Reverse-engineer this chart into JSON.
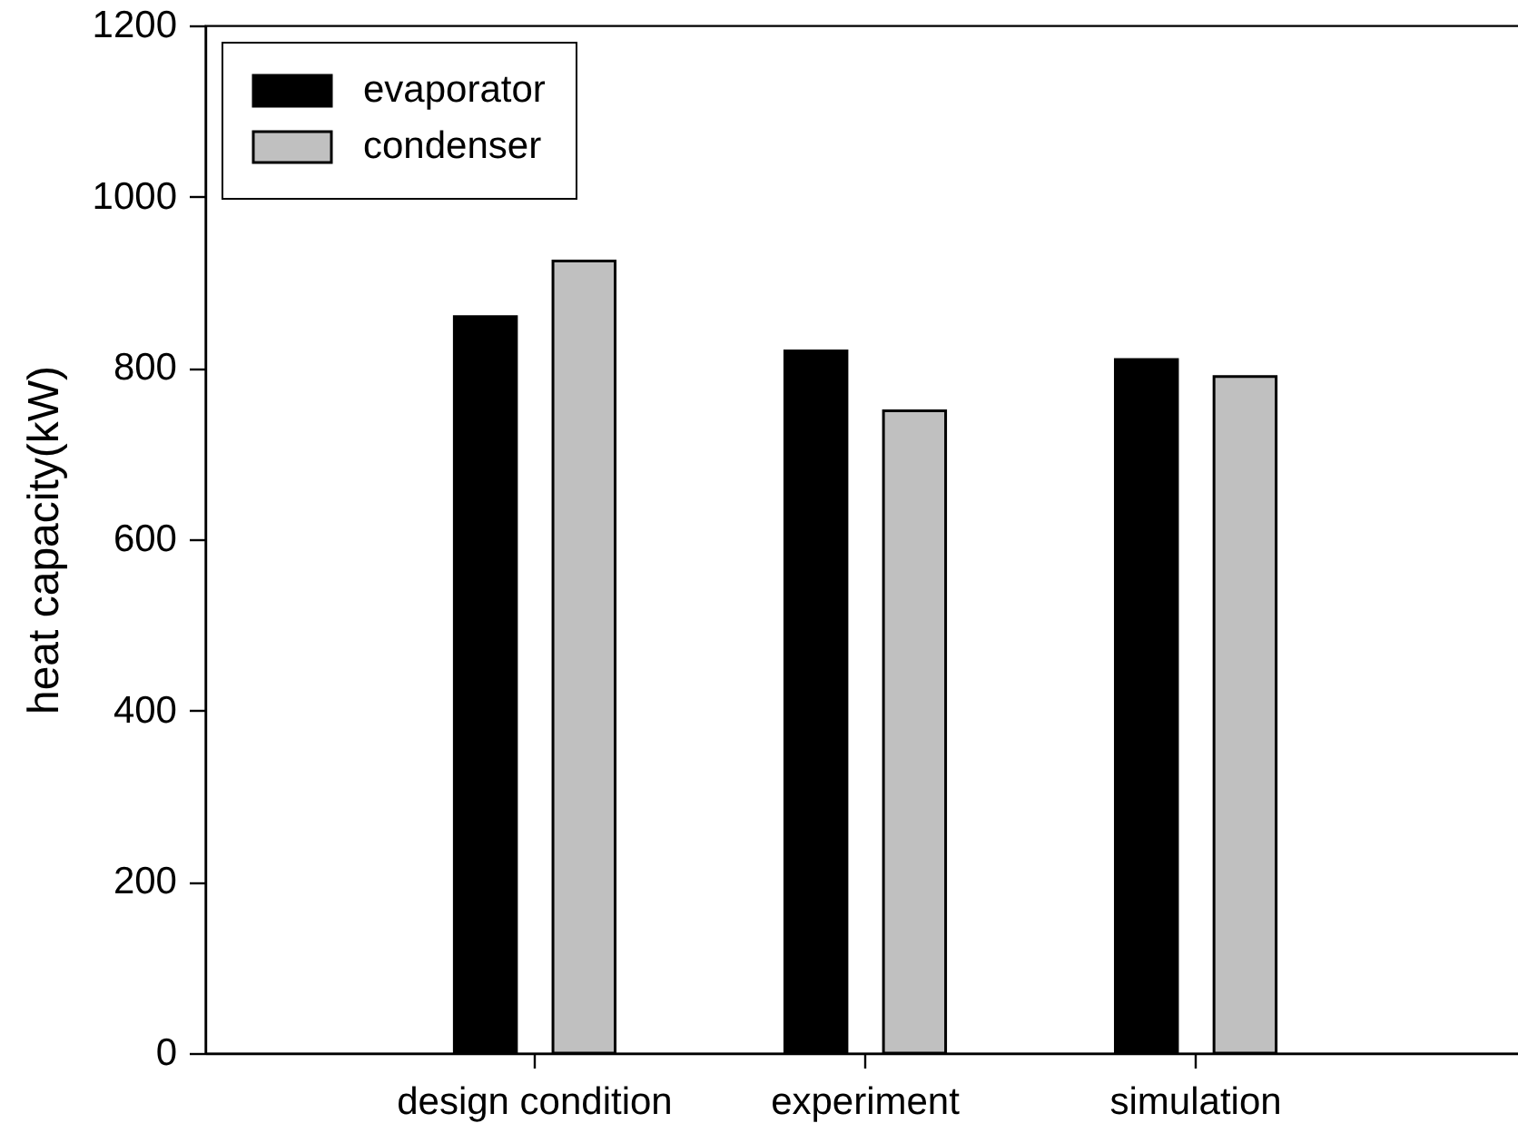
{
  "chart_data": {
    "type": "bar",
    "ylabel": "heat capacity(kW)",
    "categories": [
      "design condition",
      "experiment",
      "simulation"
    ],
    "series": [
      {
        "name": "evaporator",
        "color": "#000000",
        "values": [
          860,
          820,
          810
        ]
      },
      {
        "name": "condenser",
        "color": "#c0c0c0",
        "values": [
          925,
          750,
          790
        ]
      }
    ],
    "ylim": [
      0,
      1200
    ],
    "yticks": [
      0,
      200,
      400,
      600,
      800,
      1000,
      1200
    ],
    "legend": "top left"
  }
}
